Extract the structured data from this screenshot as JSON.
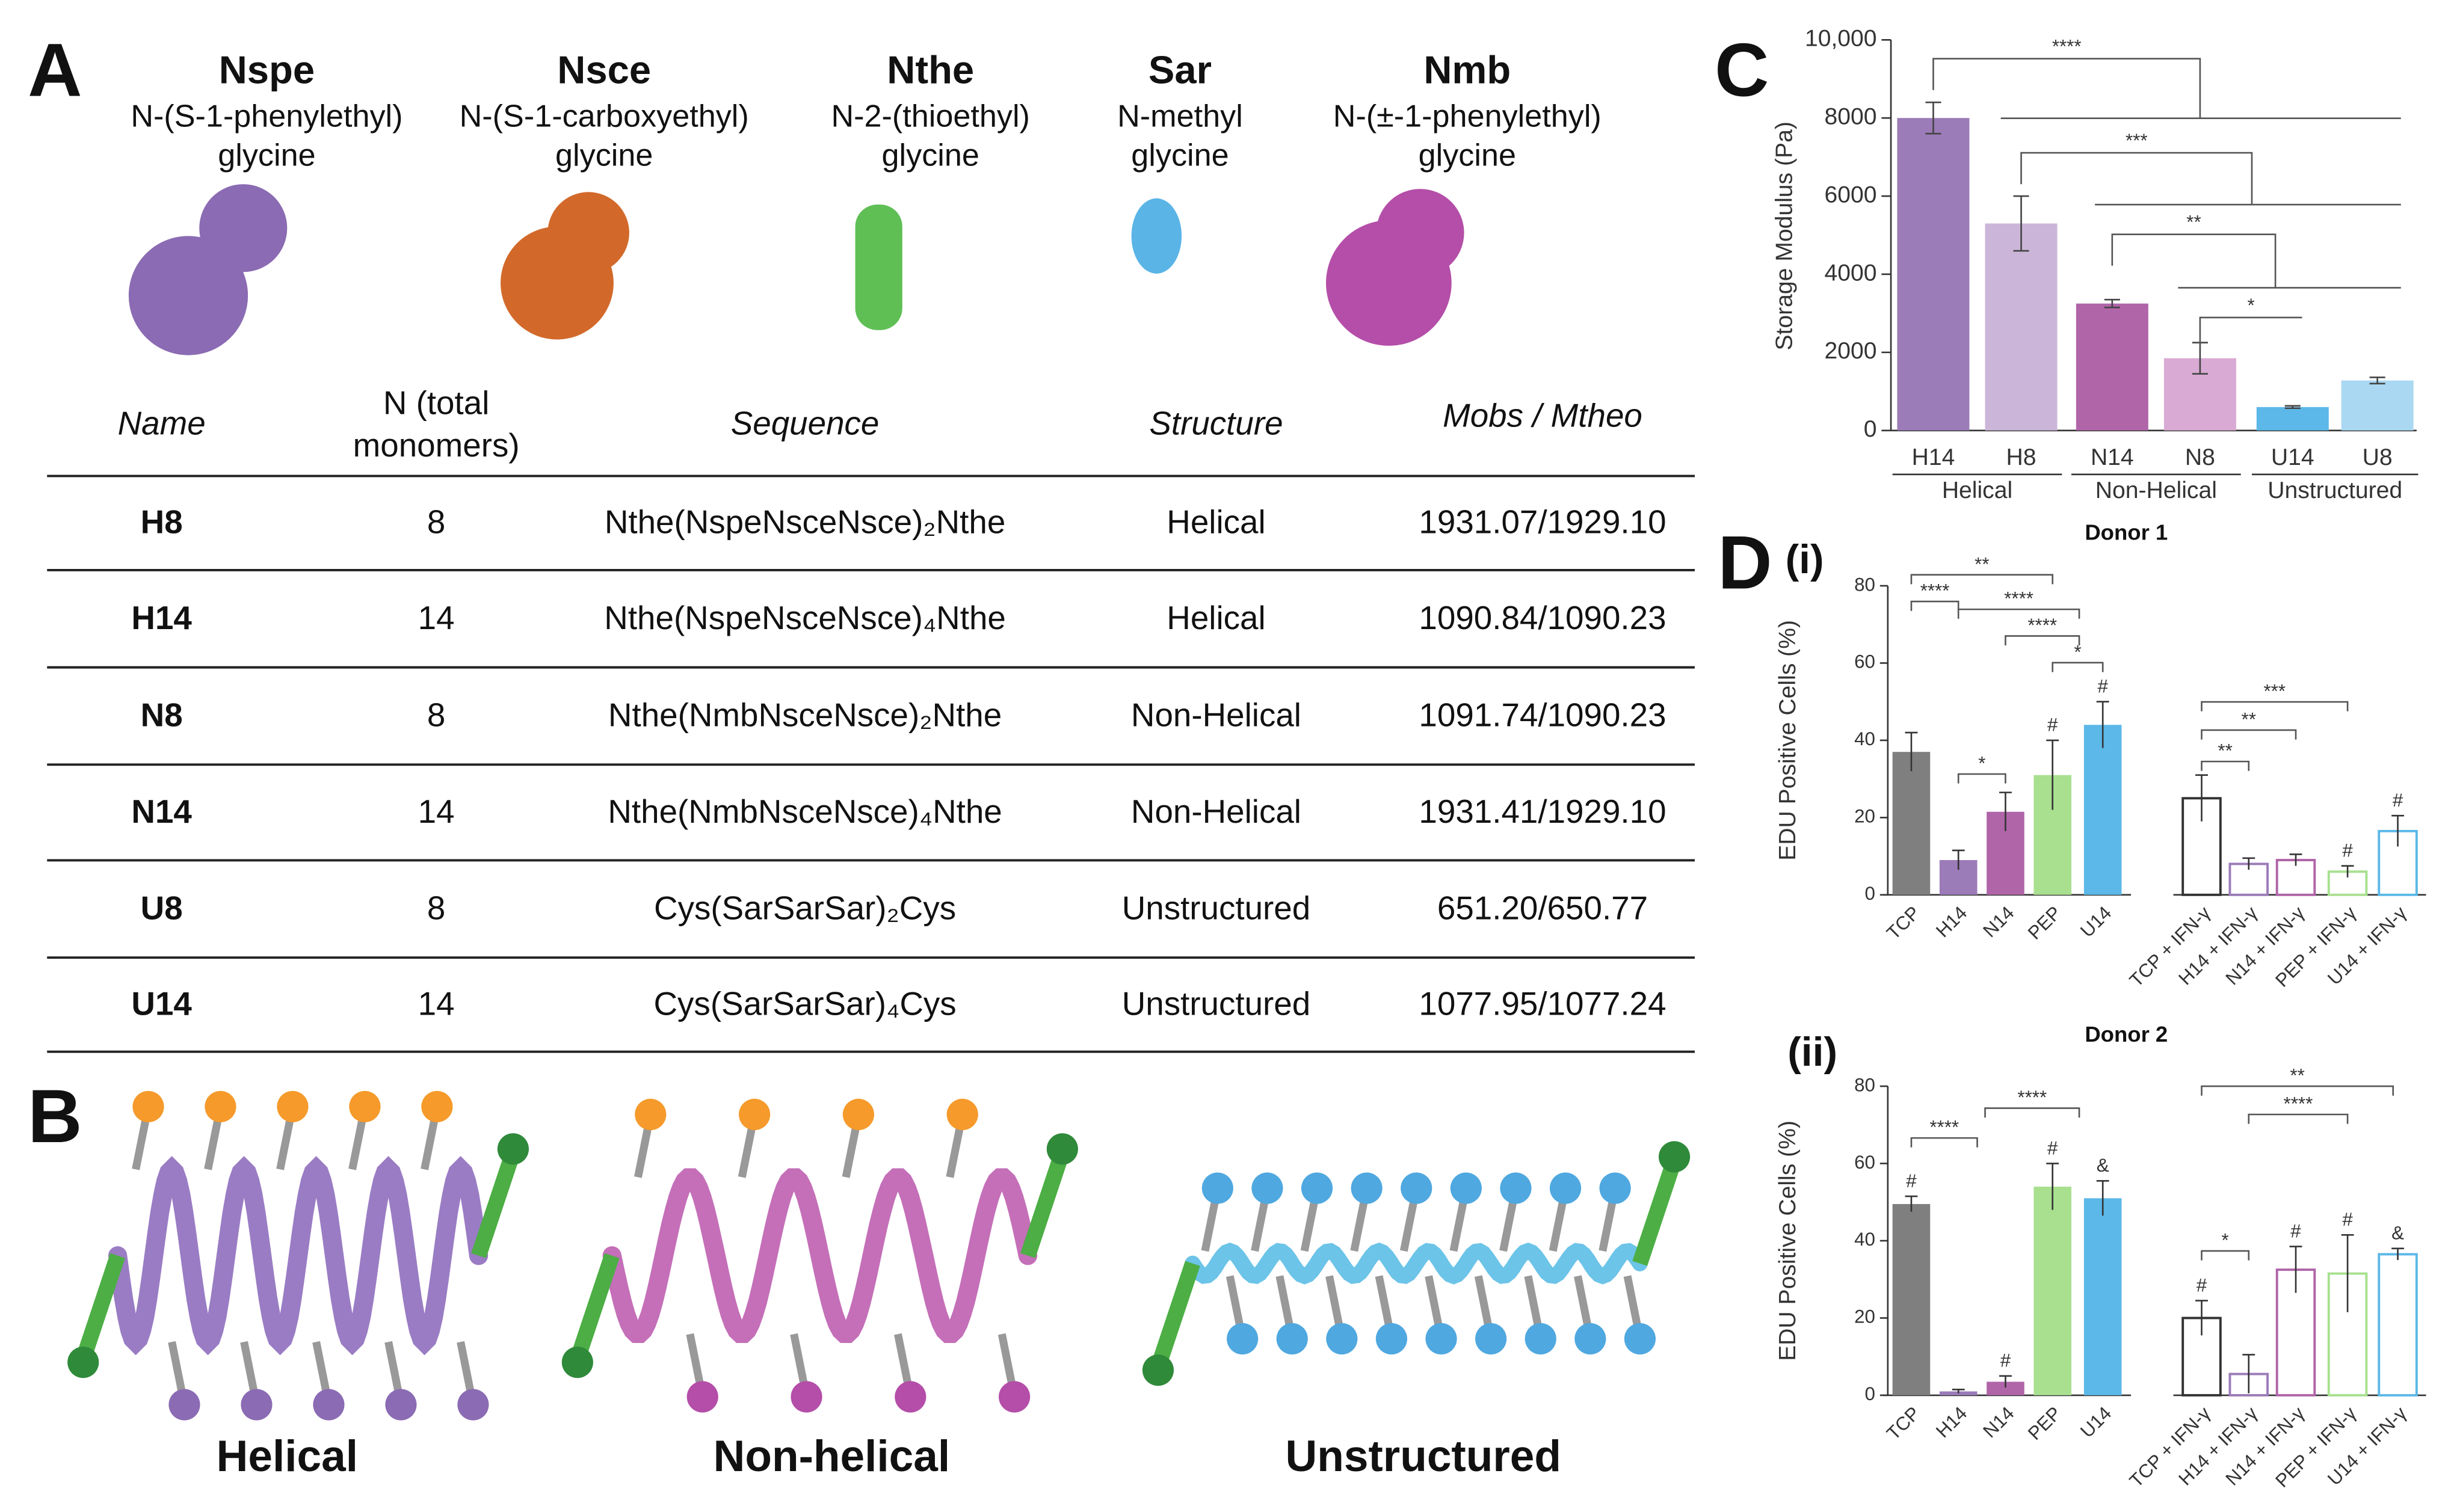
{
  "panel_labels": {
    "a": "A",
    "b": "B",
    "c": "C",
    "d": "D",
    "d_i": "(i)",
    "d_ii": "(ii)"
  },
  "monomers": [
    {
      "name": "Nspe",
      "line1": "N-(S-1-phenylethyl)",
      "line2": "glycine"
    },
    {
      "name": "Nsce",
      "line1": "N-(S-1-carboxyethyl)",
      "line2": "glycine"
    },
    {
      "name": "Nthe",
      "line1": "N-2-(thioethyl)",
      "line2": "glycine"
    },
    {
      "name": "Sar",
      "line1": "N-methyl",
      "line2": "glycine"
    },
    {
      "name": "Nmb",
      "line1": "N-(±-1-phenylethyl)",
      "line2": "glycine"
    }
  ],
  "table": {
    "header": {
      "name": "Name",
      "n_line1": "N (total",
      "n_line2": "monomers)",
      "sequence": "Sequence",
      "structure": "Structure",
      "mass": "Mobs / Mtheo"
    },
    "rows": [
      [
        "H8",
        "8",
        "Nthe(NspeNsceNsce)₂Nthe",
        "Helical",
        "1931.07/1929.10"
      ],
      [
        "H14",
        "14",
        "Nthe(NspeNsceNsce)₄Nthe",
        "Helical",
        "1090.84/1090.23"
      ],
      [
        "N8",
        "8",
        "Nthe(NmbNsceNsce)₂Nthe",
        "Non-Helical",
        "1091.74/1090.23"
      ],
      [
        "N14",
        "14",
        "Nthe(NmbNsceNsce)₄Nthe",
        "Non-Helical",
        "1931.41/1929.10"
      ],
      [
        "U8",
        "8",
        "Cys(SarSarSar)₂Cys",
        "Unstructured",
        "651.20/650.77"
      ],
      [
        "U14",
        "14",
        "Cys(SarSarSar)₄Cys",
        "Unstructured",
        "1077.95/1077.24"
      ]
    ]
  },
  "structures": [
    "Helical",
    "Non-helical",
    "Unstructured"
  ],
  "chart_data": [
    {
      "type": "bar",
      "y_label": "Storage Modulus (Pa)",
      "categories": [
        "H14",
        "H8",
        "N14",
        "N8",
        "U14",
        "U8"
      ],
      "values": [
        8000,
        5300,
        3250,
        1850,
        600,
        1280
      ],
      "errors": [
        400,
        700,
        100,
        400,
        30,
        80
      ],
      "colors": [
        "#9b7bb8",
        "#cbb5d8",
        "#b065a8",
        "#d9aad3",
        "#5cb8e8",
        "#aad8f2"
      ],
      "group_labels": [
        "Helical",
        "Non-Helical",
        "Unstructured"
      ],
      "ylim": [
        0,
        10000
      ],
      "yticks": [
        0,
        2000,
        4000,
        6000,
        8000,
        {
          "value": 10000,
          "label": "10,000"
        }
      ],
      "annotations": [
        "****",
        "***",
        "**",
        "*"
      ]
    },
    {
      "type": "bar",
      "title": "Donor 1",
      "y_label": "EDU Positive Cells (%)",
      "ylim": [
        0,
        80
      ],
      "yticks": [
        0,
        20,
        40,
        60,
        80
      ],
      "groups": [
        {
          "fill": true,
          "categories": [
            "TCP",
            "H14",
            "N14",
            "PEP",
            "U14"
          ],
          "values": [
            37,
            9,
            21.5,
            31,
            44
          ],
          "errors": [
            5,
            2.5,
            5,
            9,
            6
          ],
          "colors": [
            "#7f7f7f",
            "#9b7bb8",
            "#b065a8",
            "#a8e08f",
            "#5cb8e8"
          ],
          "markers": [
            null,
            null,
            null,
            "#",
            "#"
          ]
        },
        {
          "fill": false,
          "categories": [
            "TCP + IFN-γ",
            "H14 + IFN-γ",
            "N14 + IFN-γ",
            "PEP + IFN-γ",
            "U14 + IFN-γ"
          ],
          "values": [
            25,
            8,
            9,
            6,
            16.5
          ],
          "errors": [
            6,
            1.5,
            1.5,
            1.5,
            4
          ],
          "colors": [
            "#333333",
            "#9b7bb8",
            "#b065a8",
            "#a8e08f",
            "#5cb8e8"
          ],
          "markers": [
            null,
            null,
            null,
            "#",
            "#"
          ]
        }
      ],
      "annotations": [
        "**",
        "****",
        "****",
        "****",
        "*",
        "*",
        "***",
        "**",
        "**"
      ]
    },
    {
      "type": "bar",
      "title": "Donor 2",
      "y_label": "EDU Positive Cells (%)",
      "ylim": [
        0,
        80
      ],
      "yticks": [
        0,
        20,
        40,
        60,
        80
      ],
      "groups": [
        {
          "fill": true,
          "categories": [
            "TCP",
            "H14",
            "N14",
            "PEP",
            "U14"
          ],
          "values": [
            49.5,
            1,
            3.5,
            54,
            51
          ],
          "errors": [
            2,
            0.5,
            1.5,
            6,
            4.5
          ],
          "colors": [
            "#7f7f7f",
            "#9b7bb8",
            "#b065a8",
            "#a8e08f",
            "#5cb8e8"
          ],
          "markers": [
            "#",
            null,
            "#",
            "#",
            "&"
          ]
        },
        {
          "fill": false,
          "categories": [
            "TCP + IFN-γ",
            "H14 + IFN-γ",
            "N14 + IFN-γ",
            "PEP + IFN-γ",
            "U14 + IFN-γ"
          ],
          "values": [
            20,
            5.5,
            32.5,
            31.5,
            36.5
          ],
          "errors": [
            4.5,
            5,
            6,
            10,
            1.5
          ],
          "colors": [
            "#333333",
            "#9b7bb8",
            "#b065a8",
            "#a8e08f",
            "#5cb8e8"
          ],
          "markers": [
            "#",
            null,
            "#",
            "#",
            "&"
          ]
        }
      ],
      "annotations": [
        "****",
        "****",
        "**",
        "****",
        "*"
      ]
    }
  ]
}
